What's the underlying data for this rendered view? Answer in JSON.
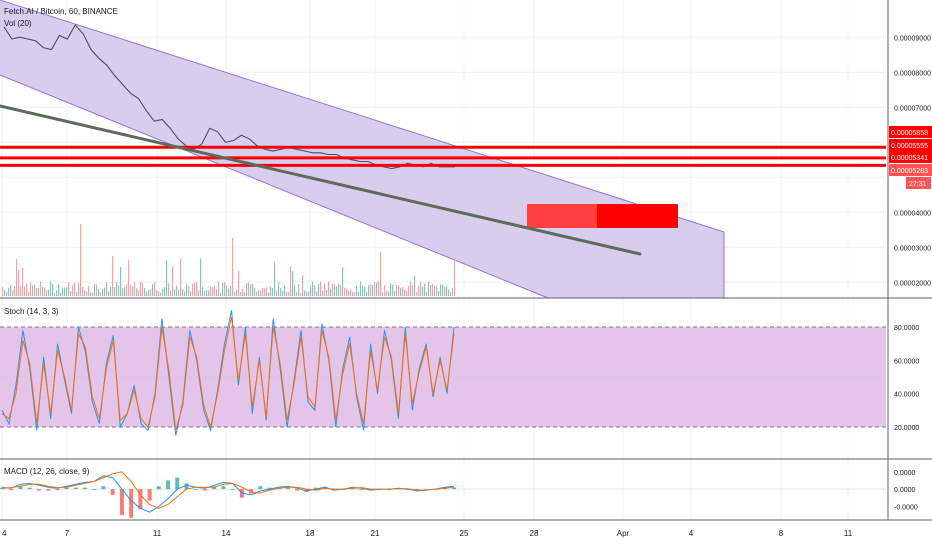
{
  "header": {
    "title": "Fetch.AI / Bitcoin, 60, BINANCE",
    "volume_label": "Vol (20)"
  },
  "chart_data": [
    {
      "type": "line",
      "title": "Fetch.AI / Bitcoin, 60, BINANCE",
      "x_tick_labels": [
        "4",
        "7",
        "11",
        "14",
        "18",
        "21",
        "25",
        "28",
        "Apr",
        "4",
        "8",
        "11"
      ],
      "y_tick_labels": [
        "0.00009000",
        "0.00008000",
        "0.00007000",
        "0.00004000",
        "0.00003000",
        "0.00002000"
      ],
      "ylim": [
        1.55e-05,
        9.55e-05
      ],
      "price_path": [
        [
          9.3e-05,
          8.95e-05
        ],
        [
          9e-05,
          8.95e-05
        ],
        [
          8.9e-05,
          8.7e-05
        ],
        [
          8.65e-05,
          9.05e-05
        ],
        [
          8.95e-05,
          9.35e-05
        ],
        [
          9.1e-05,
          8.65e-05
        ],
        [
          8.4e-05,
          8.2e-05
        ],
        [
          7.9e-05,
          7.65e-05
        ],
        [
          7.4e-05,
          7.25e-05
        ],
        [
          6.9e-05,
          6.6e-05
        ],
        [
          6.65e-05,
          6.4e-05
        ],
        [
          6.1e-05,
          5.9e-05
        ],
        [
          5.8e-05,
          5.95e-05
        ],
        [
          6.4e-05,
          6.3e-05
        ],
        [
          6e-05,
          6.05e-05
        ],
        [
          6.2e-05,
          6.1e-05
        ],
        [
          5.9e-05,
          5.8e-05
        ],
        [
          5.75e-05,
          5.8e-05
        ],
        [
          5.85e-05,
          5.8e-05
        ],
        [
          5.75e-05,
          5.7e-05
        ],
        [
          5.7e-05,
          5.65e-05
        ],
        [
          5.65e-05,
          5.55e-05
        ],
        [
          5.5e-05,
          5.45e-05
        ],
        [
          5.45e-05,
          5.35e-05
        ],
        [
          5.3e-05,
          5.25e-05
        ],
        [
          5.3e-05,
          5.4e-05
        ],
        [
          5.35e-05,
          5.3e-05
        ],
        [
          5.4e-05,
          5.3e-05
        ],
        [
          5.3e-05,
          5.3e-05
        ]
      ],
      "price_labels": [
        {
          "value": "0.00005858",
          "color": "#ff0000"
        },
        {
          "value": "0.00005555",
          "color": "#ff0000"
        },
        {
          "value": "0.00005341",
          "color": "#ff0000"
        },
        {
          "value": "0.00005283",
          "color": "#ff5252"
        }
      ],
      "countdown": "27:31",
      "horizontal_lines": [
        5.858e-05,
        5.555e-05,
        5.341e-05
      ],
      "channel": {
        "color": "#9575cd",
        "fill": "#d1c4e9"
      },
      "trendline_color": "#5d6b5a",
      "zone_color": "#ff0000"
    },
    {
      "type": "line",
      "title": "Stoch (14, 3, 3)",
      "y_tick_labels": [
        "80.0000",
        "60.0000",
        "40.0000",
        "20.0000"
      ],
      "ylim": [
        8,
        92
      ],
      "band": [
        20,
        80
      ],
      "band_color": "#e1bee7",
      "series": [
        {
          "color": "#2196f3",
          "values": [
            30,
            22,
            45,
            78,
            55,
            18,
            62,
            25,
            70,
            48,
            28,
            80,
            65,
            35,
            22,
            58,
            75,
            20,
            28,
            45,
            22,
            18,
            40,
            85,
            50,
            15,
            35,
            78,
            60,
            30,
            18,
            42,
            70,
            90,
            45,
            80,
            28,
            62,
            24,
            85,
            55,
            20,
            48,
            78,
            35,
            30,
            82,
            60,
            20,
            55,
            74,
            38,
            18,
            70,
            40,
            78,
            60,
            25,
            80,
            30,
            55,
            70,
            38,
            62,
            40,
            80
          ]
        },
        {
          "color": "#ff6d00",
          "values": [
            28,
            25,
            40,
            72,
            58,
            22,
            58,
            28,
            66,
            50,
            30,
            76,
            68,
            38,
            25,
            55,
            72,
            24,
            28,
            42,
            25,
            20,
            38,
            80,
            54,
            18,
            33,
            74,
            62,
            33,
            20,
            40,
            66,
            86,
            48,
            76,
            32,
            60,
            26,
            80,
            58,
            24,
            46,
            74,
            38,
            32,
            78,
            62,
            24,
            52,
            70,
            40,
            22,
            66,
            42,
            74,
            62,
            28,
            76,
            34,
            53,
            68,
            40,
            60,
            42,
            76
          ]
        }
      ]
    },
    {
      "type": "line",
      "title": "MACD (12, 26, close, 9)",
      "y_tick_labels": [
        "0.0000",
        "0.0000",
        "-0.0000"
      ],
      "ylim": [
        -1.4,
        1.1
      ],
      "series": [
        {
          "color": "#2196f3",
          "values": [
            0.1,
            0.05,
            0.25,
            0.3,
            0.2,
            0.1,
            0.05,
            0.15,
            0.25,
            0.35,
            0.4,
            0.7,
            0.6,
            0.0,
            -0.6,
            -1.0,
            -1.2,
            -0.9,
            -0.5,
            0.0,
            0.2,
            0.1,
            0.05,
            0.2,
            0.35,
            0.3,
            -0.2,
            -0.3,
            -0.1,
            0.0,
            0.1,
            0.15,
            0.05,
            -0.1,
            0.0,
            0.1,
            -0.05,
            0.0,
            0.1,
            0.05,
            -0.05,
            0.0,
            0.0,
            0.05,
            0.0,
            -0.1,
            -0.05,
            0.0,
            0.1,
            0.15
          ]
        },
        {
          "color": "#ff6d00",
          "values": [
            0.05,
            0.08,
            0.15,
            0.25,
            0.25,
            0.15,
            0.08,
            0.1,
            0.2,
            0.3,
            0.4,
            0.6,
            0.8,
            0.9,
            0.4,
            -0.3,
            -0.8,
            -1.0,
            -0.8,
            -0.4,
            0.0,
            0.1,
            0.1,
            0.1,
            0.25,
            0.3,
            0.1,
            -0.15,
            -0.2,
            -0.05,
            0.05,
            0.1,
            0.1,
            0.0,
            -0.05,
            0.05,
            0.0,
            0.0,
            0.05,
            0.08,
            0.0,
            0.0,
            0.0,
            0.02,
            0.02,
            -0.05,
            -0.05,
            0.0,
            0.05,
            0.1
          ]
        }
      ]
    }
  ]
}
